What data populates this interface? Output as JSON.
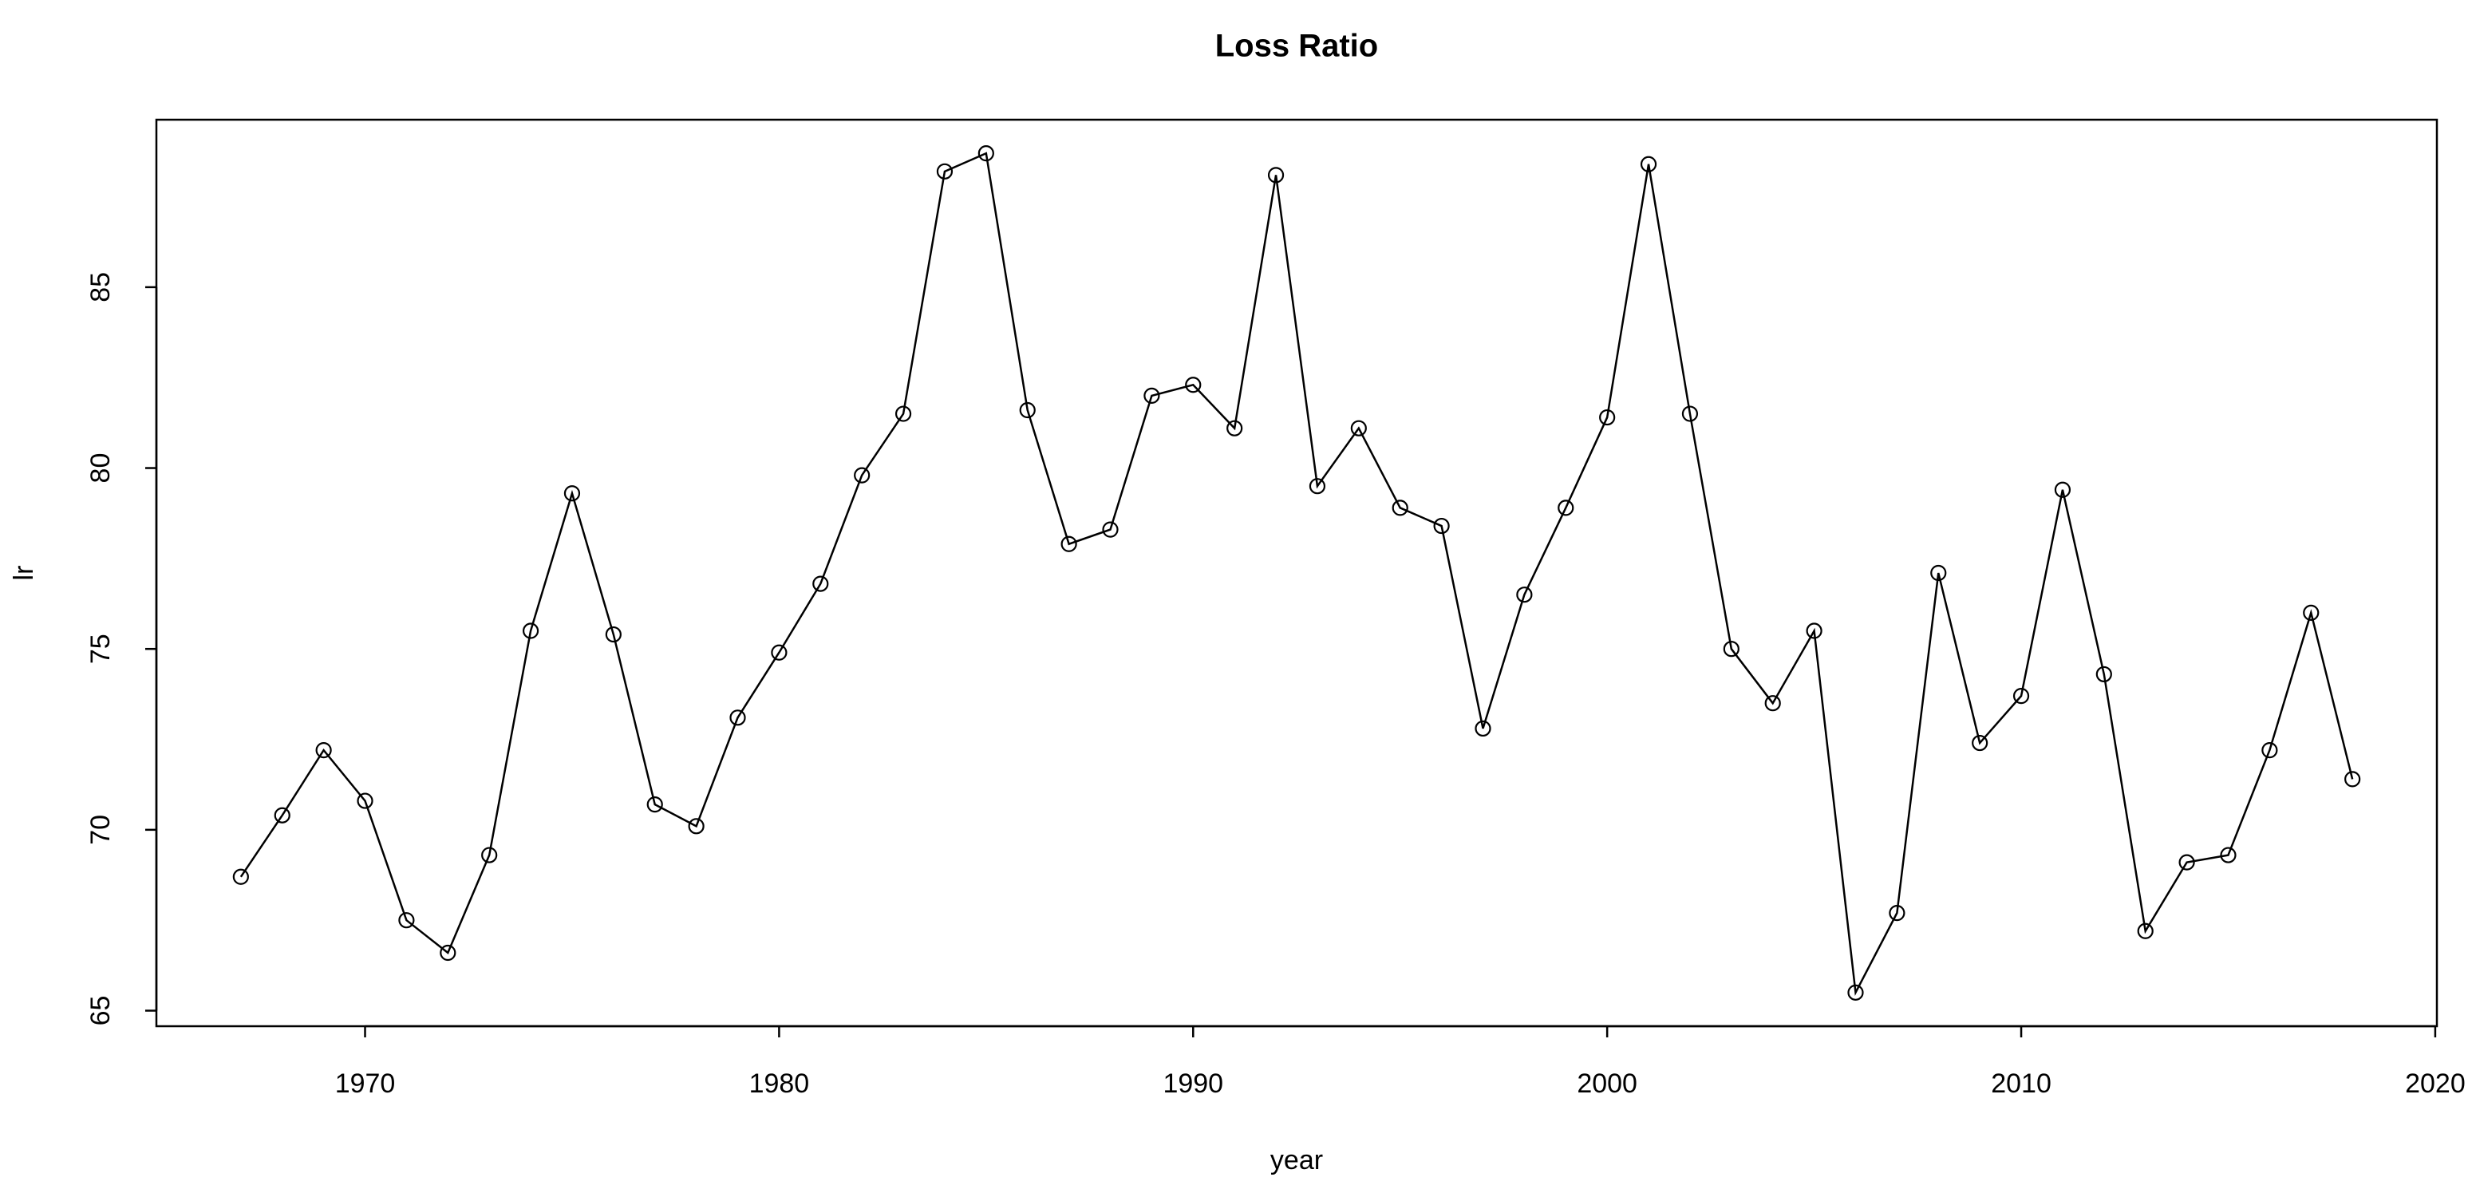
{
  "chart_data": {
    "type": "line",
    "title": "Loss Ratio",
    "xlabel": "year",
    "ylabel": "lr",
    "x": [
      1967,
      1968,
      1969,
      1970,
      1971,
      1972,
      1973,
      1974,
      1975,
      1976,
      1977,
      1978,
      1979,
      1980,
      1981,
      1982,
      1983,
      1984,
      1985,
      1986,
      1987,
      1988,
      1989,
      1990,
      1991,
      1992,
      1993,
      1994,
      1995,
      1996,
      1997,
      1998,
      1999,
      2000,
      2001,
      2002,
      2003,
      2004,
      2005,
      2006,
      2007,
      2008,
      2009,
      2010,
      2011,
      2012,
      2013,
      2014,
      2015,
      2016,
      2017,
      2018
    ],
    "values": [
      68.7,
      70.4,
      72.2,
      70.8,
      67.5,
      66.6,
      69.3,
      75.5,
      79.3,
      75.4,
      70.7,
      70.1,
      73.1,
      74.9,
      76.8,
      79.8,
      81.5,
      88.2,
      88.7,
      81.6,
      77.9,
      78.3,
      82.0,
      82.3,
      81.1,
      88.1,
      79.5,
      81.1,
      78.9,
      78.4,
      72.8,
      76.5,
      78.9,
      81.4,
      88.4,
      81.5,
      75.0,
      73.5,
      75.5,
      65.5,
      67.7,
      77.1,
      72.4,
      73.7,
      79.4,
      74.3,
      67.2,
      69.1,
      69.3,
      72.2,
      76.0,
      71.4
    ],
    "color": "#000000",
    "markers": true,
    "xlim": [
      1964.96,
      2020.04
    ],
    "ylim": [
      64.57,
      89.63
    ],
    "xticks": [
      1970,
      1980,
      1990,
      2000,
      2010,
      2020
    ],
    "yticks": [
      65,
      70,
      75,
      80,
      85
    ]
  }
}
